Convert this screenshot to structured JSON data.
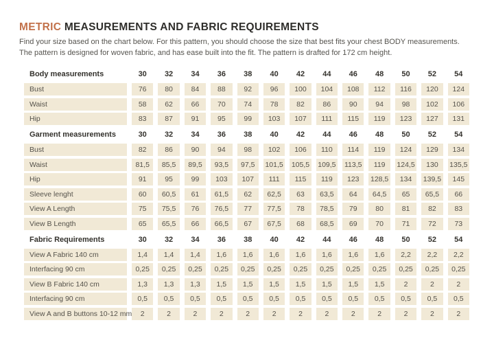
{
  "page": {
    "title_accent": "METRIC",
    "title_rest": " MEASUREMENTS AND FABRIC REQUIREMENTS",
    "intro_line1": "Find your size based on the chart below. For this pattern, you should choose the size that best fits your chest BODY measurements.",
    "intro_line2": "The pattern is designed for woven fabric, and has ease built into the fit. The pattern is drafted for 172 cm height.",
    "accent_color": "#c2714a",
    "cell_color": "#f1e9d6"
  },
  "chart_data": {
    "type": "table",
    "sizes": [
      "30",
      "32",
      "34",
      "36",
      "38",
      "40",
      "42",
      "44",
      "46",
      "48",
      "50",
      "52",
      "54"
    ],
    "sections": [
      {
        "header": "Body measurements",
        "rows": [
          {
            "label": "Bust",
            "values": [
              "76",
              "80",
              "84",
              "88",
              "92",
              "96",
              "100",
              "104",
              "108",
              "112",
              "116",
              "120",
              "124"
            ]
          },
          {
            "label": "Waist",
            "values": [
              "58",
              "62",
              "66",
              "70",
              "74",
              "78",
              "82",
              "86",
              "90",
              "94",
              "98",
              "102",
              "106"
            ]
          },
          {
            "label": "Hip",
            "values": [
              "83",
              "87",
              "91",
              "95",
              "99",
              "103",
              "107",
              "111",
              "115",
              "119",
              "123",
              "127",
              "131"
            ]
          }
        ]
      },
      {
        "header": "Garment measurements",
        "rows": [
          {
            "label": "Bust",
            "values": [
              "82",
              "86",
              "90",
              "94",
              "98",
              "102",
              "106",
              "110",
              "114",
              "119",
              "124",
              "129",
              "134"
            ]
          },
          {
            "label": "Waist",
            "values": [
              "81,5",
              "85,5",
              "89,5",
              "93,5",
              "97,5",
              "101,5",
              "105,5",
              "109,5",
              "113,5",
              "119",
              "124,5",
              "130",
              "135,5"
            ]
          },
          {
            "label": "Hip",
            "values": [
              "91",
              "95",
              "99",
              "103",
              "107",
              "111",
              "115",
              "119",
              "123",
              "128,5",
              "134",
              "139,5",
              "145"
            ]
          },
          {
            "label": "Sleeve lenght",
            "values": [
              "60",
              "60,5",
              "61",
              "61,5",
              "62",
              "62,5",
              "63",
              "63,5",
              "64",
              "64,5",
              "65",
              "65,5",
              "66"
            ]
          },
          {
            "label": "View A Length",
            "values": [
              "75",
              "75,5",
              "76",
              "76,5",
              "77",
              "77,5",
              "78",
              "78,5",
              "79",
              "80",
              "81",
              "82",
              "83"
            ]
          },
          {
            "label": "View B Length",
            "values": [
              "65",
              "65,5",
              "66",
              "66,5",
              "67",
              "67,5",
              "68",
              "68,5",
              "69",
              "70",
              "71",
              "72",
              "73"
            ]
          }
        ]
      },
      {
        "header": "Fabric Requirements",
        "rows": [
          {
            "label": "View A Fabric 140 cm",
            "values": [
              "1,4",
              "1,4",
              "1,4",
              "1,6",
              "1,6",
              "1,6",
              "1,6",
              "1,6",
              "1,6",
              "1,6",
              "2,2",
              "2,2",
              "2,2"
            ]
          },
          {
            "label": "Interfacing 90 cm",
            "values": [
              "0,25",
              "0,25",
              "0,25",
              "0,25",
              "0,25",
              "0,25",
              "0,25",
              "0,25",
              "0,25",
              "0,25",
              "0,25",
              "0,25",
              "0,25"
            ]
          },
          {
            "label": "View B Fabric 140 cm",
            "values": [
              "1,3",
              "1,3",
              "1,3",
              "1,5",
              "1,5",
              "1,5",
              "1,5",
              "1,5",
              "1,5",
              "1,5",
              "2",
              "2",
              "2"
            ]
          },
          {
            "label": "Interfacing 90 cm",
            "values": [
              "0,5",
              "0,5",
              "0,5",
              "0,5",
              "0,5",
              "0,5",
              "0,5",
              "0,5",
              "0,5",
              "0,5",
              "0,5",
              "0,5",
              "0,5"
            ]
          },
          {
            "label": "View A and B buttons 10-12 mm",
            "values": [
              "2",
              "2",
              "2",
              "2",
              "2",
              "2",
              "2",
              "2",
              "2",
              "2",
              "2",
              "2",
              "2"
            ]
          }
        ]
      }
    ]
  }
}
